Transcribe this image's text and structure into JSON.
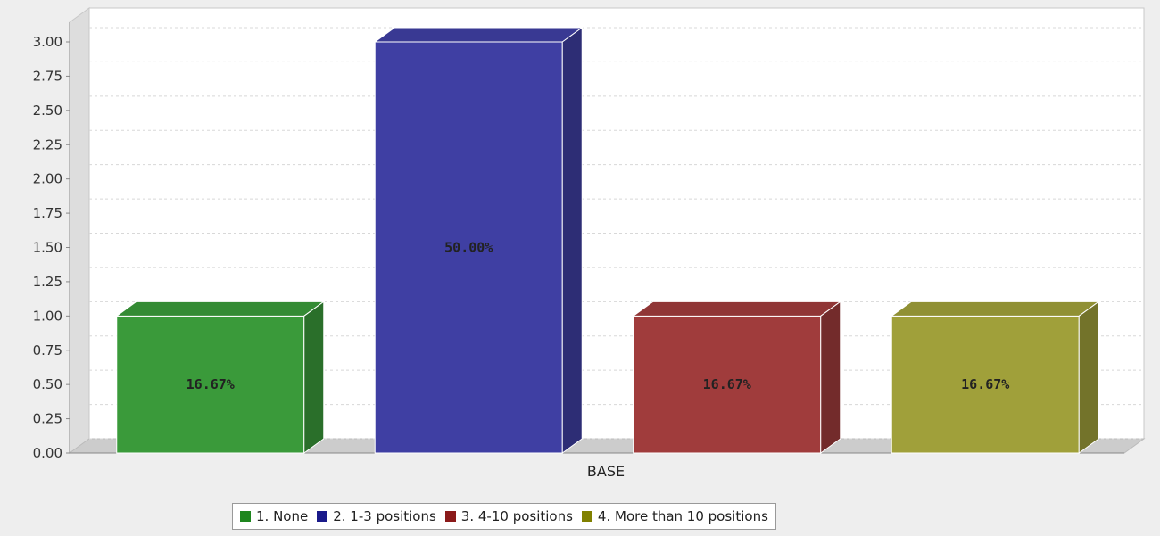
{
  "chart_data": {
    "type": "bar",
    "style": "3d",
    "categories": [
      "BASE"
    ],
    "series": [
      {
        "name": "1. None",
        "values": [
          1
        ],
        "label": "16.67%",
        "color": "#3a9a3a"
      },
      {
        "name": "2. 1-3 positions",
        "values": [
          3
        ],
        "label": "50.00%",
        "color": "#3f3fa3"
      },
      {
        "name": "3. 4-10 positions",
        "values": [
          1
        ],
        "label": "16.67%",
        "color": "#a03c3c"
      },
      {
        "name": "4. More than 10 positions",
        "values": [
          1
        ],
        "label": "16.67%",
        "color": "#a0a03a"
      }
    ],
    "legend_colors": [
      "#1e861e",
      "#1a1a8a",
      "#8b1a1a",
      "#808000"
    ],
    "ylim": [
      0,
      3.0
    ],
    "yticks": [
      "0.00",
      "0.25",
      "0.50",
      "0.75",
      "1.00",
      "1.25",
      "1.50",
      "1.75",
      "2.00",
      "2.25",
      "2.50",
      "2.75",
      "3.00"
    ],
    "grid": true,
    "legend_position": "bottom"
  }
}
